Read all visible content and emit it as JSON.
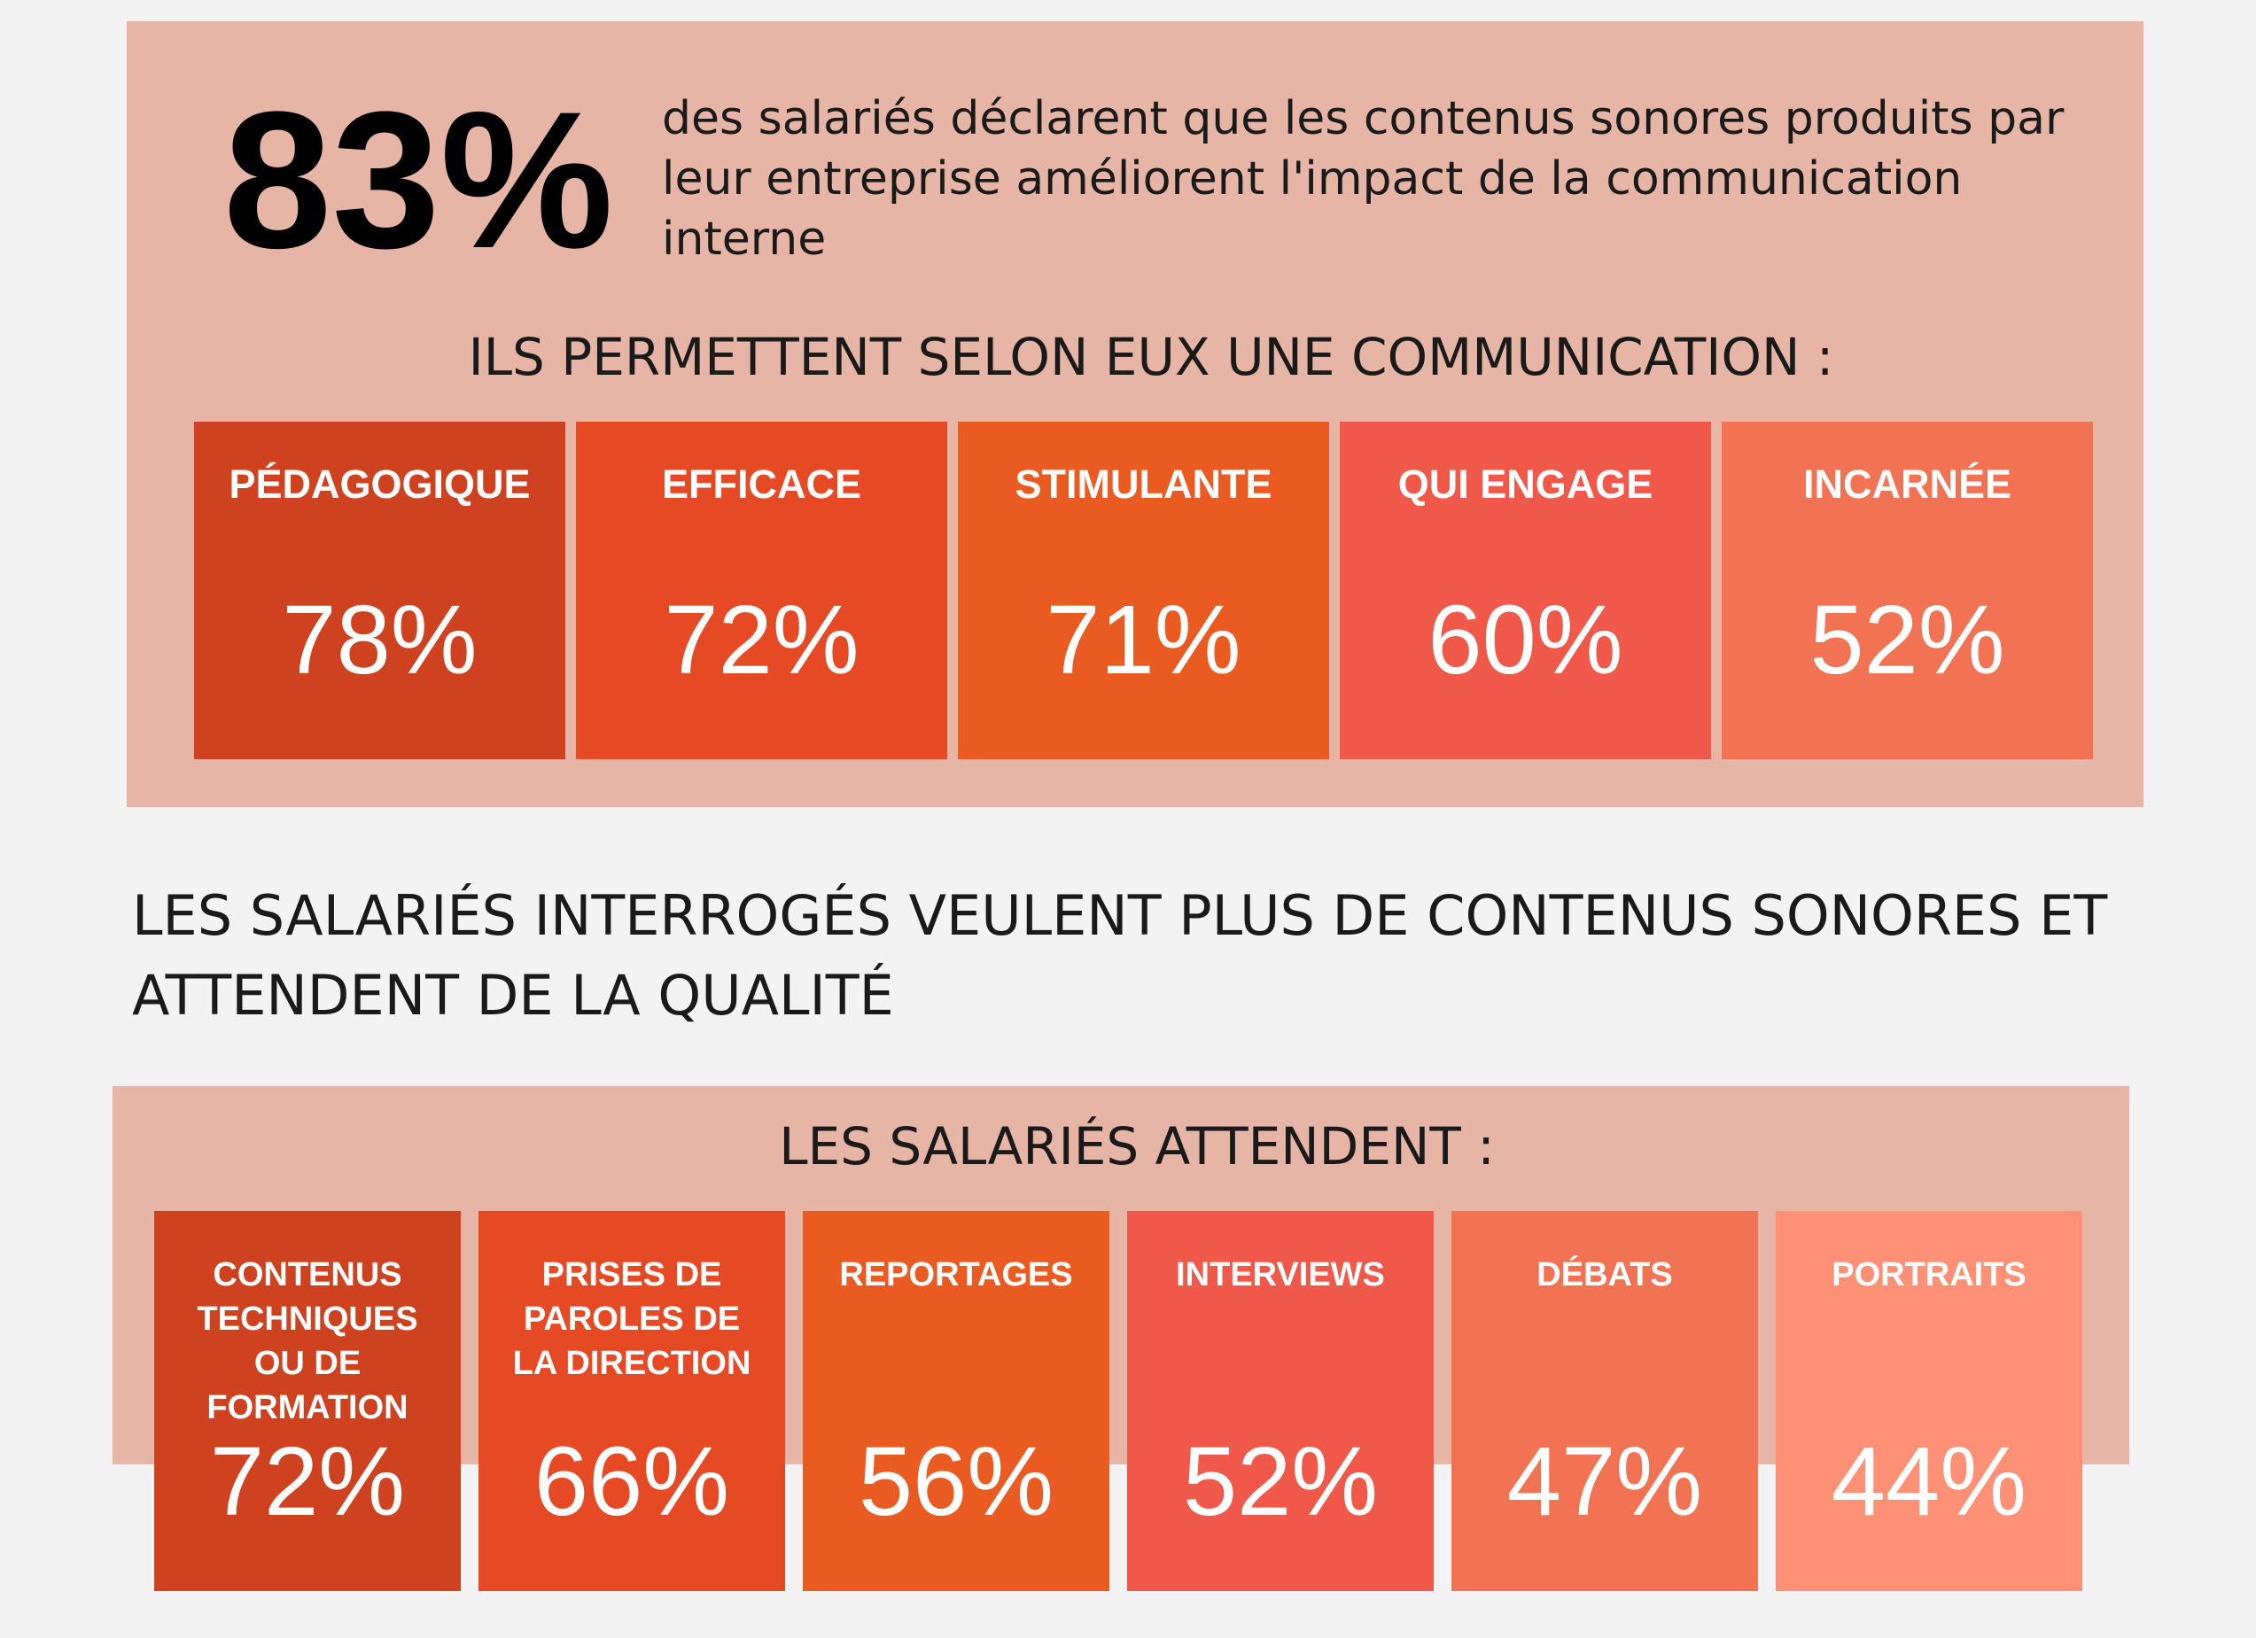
{
  "colors": {
    "page_background": "#f4f3f3",
    "panel": "#e6b5a5",
    "text": "#1a1a1a",
    "stat_text": "#000000",
    "card_text": "#ffffff"
  },
  "headline": {
    "stat": "83%",
    "lines": [
      "des salariés déclarent que les contenus sonores produits par",
      "leur entreprise améliorent l'impact de la communication",
      "interne"
    ]
  },
  "communication": {
    "title": "ILS PERMETTENT SELON EUX UNE COMMUNICATION :",
    "cards": [
      {
        "label": "PÉDAGOGIQUE",
        "value": "78%",
        "color": "#cf4220"
      },
      {
        "label": "EFFICACE",
        "value": "72%",
        "color": "#e64a25"
      },
      {
        "label": "STIMULANTE",
        "value": "71%",
        "color": "#ea5b21"
      },
      {
        "label": "QUI ENGAGE",
        "value": "60%",
        "color": "#f0584a"
      },
      {
        "label": "INCARNÉE",
        "value": "52%",
        "color": "#f17353"
      }
    ]
  },
  "expectations": {
    "heading_lines": [
      "LES SALARIÉS INTERROGÉS VEULENT PLUS DE CONTENUS SONORES ET",
      "ATTENDENT DE LA QUALITÉ"
    ],
    "title": "LES SALARIÉS ATTENDENT :",
    "cards": [
      {
        "label_lines": [
          "CONTENUS",
          "TECHNIQUES",
          "OU DE",
          "FORMATION"
        ],
        "value": "72%",
        "color": "#cf4220"
      },
      {
        "label_lines": [
          "PRISES DE",
          "PAROLES DE",
          "LA DIRECTION"
        ],
        "value": "66%",
        "color": "#e64a25"
      },
      {
        "label_lines": [
          "REPORTAGES"
        ],
        "value": "56%",
        "color": "#ea5b21"
      },
      {
        "label_lines": [
          "INTERVIEWS"
        ],
        "value": "52%",
        "color": "#f0584a"
      },
      {
        "label_lines": [
          "DÉBATS"
        ],
        "value": "47%",
        "color": "#f17353"
      },
      {
        "label_lines": [
          "PORTRAITS"
        ],
        "value": "44%",
        "color": "#fd9075"
      }
    ]
  }
}
